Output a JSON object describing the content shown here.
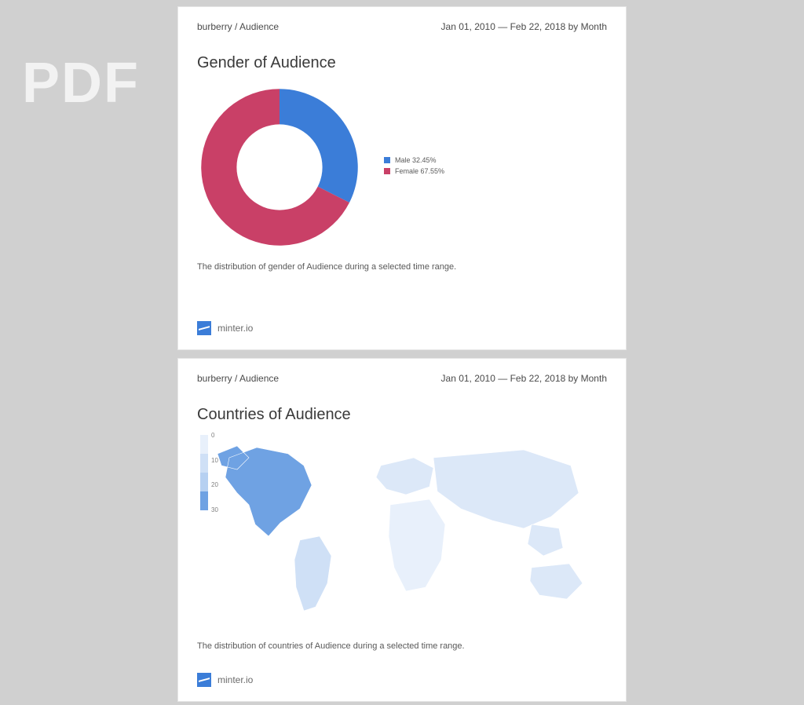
{
  "watermark": "PDF",
  "page1": {
    "breadcrumb": "burberry / Audience",
    "daterange": "Jan 01, 2010 — Feb 22, 2018 by Month",
    "title": "Gender of Audience",
    "caption": "The distribution of gender of Audience during a selected time range.",
    "footer_brand": "minter.io",
    "donut": {
      "type": "donut",
      "inner_radius_ratio": 0.52,
      "start_angle_deg": -90,
      "background_color": "#ffffff",
      "slices": [
        {
          "label": "Male",
          "percent": 32.45,
          "color": "#3b7dd8",
          "legend_text": "Male 32.45%"
        },
        {
          "label": "Female",
          "percent": 67.55,
          "color": "#c94067",
          "legend_text": "Female 67.55%"
        }
      ],
      "legend_fontsize": 9,
      "legend_color": "#5a5a5a"
    }
  },
  "page2": {
    "breadcrumb": "burberry / Audience",
    "daterange": "Jan 01, 2010 — Feb 22, 2018 by Month",
    "title": "Countries of Audience",
    "caption": "The distribution of countries of Audience during a selected time range.",
    "footer_brand": "minter.io",
    "map": {
      "type": "choropleth-world",
      "background_color": "#ffffff",
      "land_base_color": "#e8f0fb",
      "highlight_palette": [
        "#e8f0fb",
        "#cfe0f6",
        "#b6d0f1",
        "#9dc0ec",
        "#6fa2e3"
      ],
      "colorbar": {
        "ticks": [
          "0",
          "10",
          "20",
          "30"
        ],
        "tick_fontsize": 8,
        "tick_color": "#808080",
        "gradient": [
          "#e8f0fb",
          "#cfe0f6",
          "#b6d0f1",
          "#6fa2e3"
        ]
      },
      "regions": [
        {
          "name": "North America",
          "intensity": 30,
          "fill": "#6fa2e3"
        },
        {
          "name": "South America",
          "intensity": 8,
          "fill": "#cfe0f6"
        },
        {
          "name": "Europe",
          "intensity": 6,
          "fill": "#dce8f8"
        },
        {
          "name": "Africa",
          "intensity": 2,
          "fill": "#e8f0fb"
        },
        {
          "name": "Asia",
          "intensity": 5,
          "fill": "#dce8f8"
        },
        {
          "name": "Oceania",
          "intensity": 4,
          "fill": "#dce8f8"
        }
      ]
    }
  }
}
